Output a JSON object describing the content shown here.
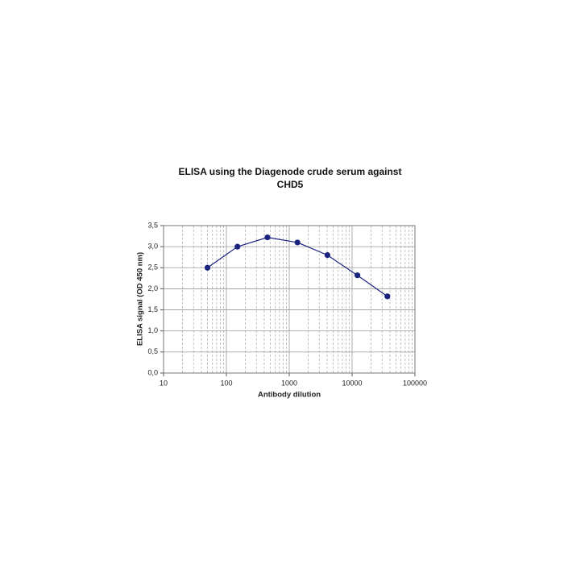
{
  "chart_data": {
    "type": "line",
    "title": "ELISA using the Diagenode crude serum against CHD5",
    "x_label": "Antibody dilution",
    "y_label": "ELISA signal (OD 450 nm)",
    "x": [
      50,
      150,
      450,
      1350,
      4050,
      12150,
      36450
    ],
    "series": [
      {
        "color": "#1a237e",
        "values": [
          2.5,
          3.0,
          3.22,
          3.1,
          2.8,
          2.32,
          1.82
        ]
      }
    ],
    "log_x": true,
    "xlim": [
      10,
      100000
    ],
    "xticks": [
      10,
      100,
      1000,
      10000,
      100000
    ],
    "ylim": [
      0,
      3.5
    ],
    "yticks": [
      {
        "value": 0,
        "label": "0,0"
      },
      {
        "value": 0.5,
        "label": "0,5"
      },
      {
        "value": 1,
        "label": "1,0"
      },
      {
        "value": 1.5,
        "label": "1,5"
      },
      {
        "value": 2,
        "label": "2,0"
      },
      {
        "value": 2.5,
        "label": "2,5"
      },
      {
        "value": 3,
        "label": "3,0"
      },
      {
        "value": 3.5,
        "label": "3,5"
      }
    ],
    "grid": true
  }
}
